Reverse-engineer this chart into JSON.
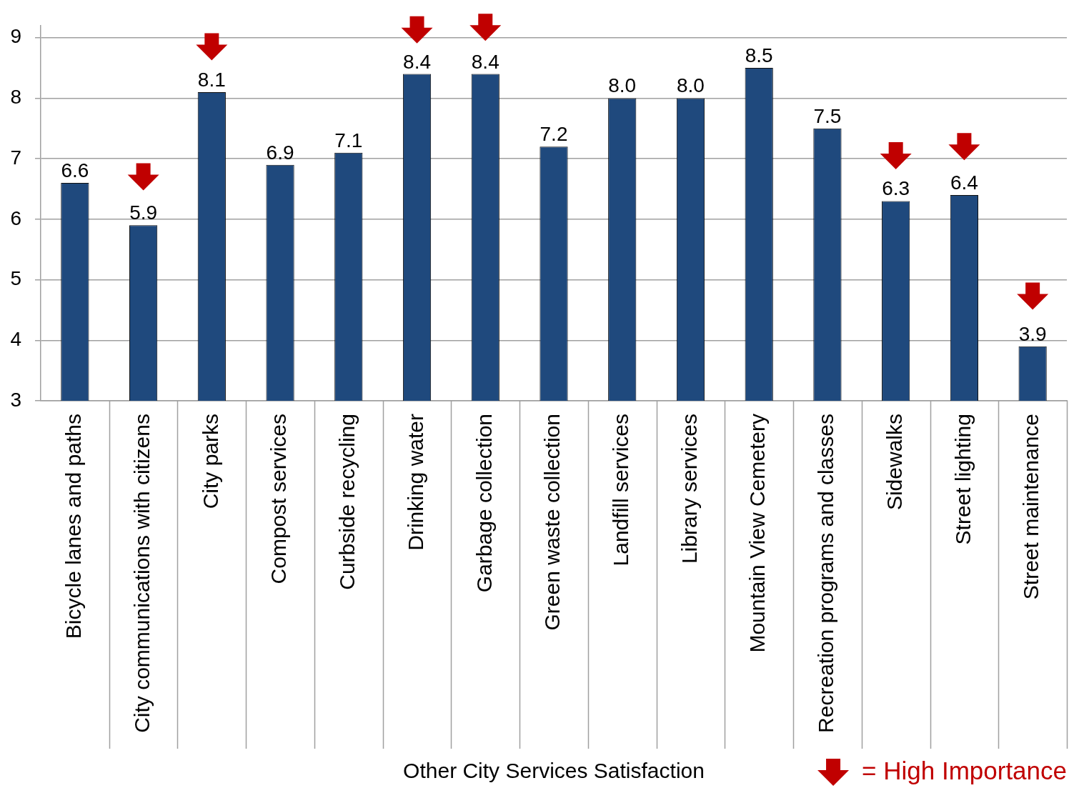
{
  "chart_data": {
    "type": "bar",
    "xlabel": "Other City Services Satisfaction",
    "categories": [
      "Bicycle lanes and paths",
      "City communications with citizens",
      "City parks",
      "Compost services",
      "Curbside recycling",
      "Drinking water",
      "Garbage collection",
      "Green waste collection",
      "Landfill services",
      "Library services",
      "Mountain View Cemetery",
      "Recreation programs and classes",
      "Sidewalks",
      "Street lighting",
      "Street maintenance"
    ],
    "series": [
      {
        "color": "#1f497d",
        "values": [
          6.6,
          5.9,
          8.1,
          6.9,
          7.1,
          8.4,
          8.4,
          7.2,
          8.0,
          8.0,
          8.5,
          7.5,
          6.3,
          6.4,
          3.9
        ],
        "value_labels": [
          "6.6",
          "5.9",
          "8.1",
          "6.9",
          "7.1",
          "8.4",
          "8.4",
          "7.2",
          "8.0",
          "8.0",
          "8.5",
          "7.5",
          "6.3",
          "6.4",
          "3.9"
        ]
      },
      {
        "type": "scatter",
        "name": "= High Importance",
        "color": "#c00000",
        "marker": "triangle",
        "x": [
          "City communications with citizens",
          "City parks",
          "Drinking water",
          "Garbage collection",
          "Sidewalks",
          "Street lighting",
          "Street maintenance"
        ],
        "values": [
          6.7,
          8.85,
          9.13,
          9.17,
          7.05,
          7.2,
          4.73
        ]
      }
    ],
    "ylim": [
      3,
      9.2
    ],
    "yticks": [
      3,
      4,
      5,
      6,
      7,
      8,
      9
    ],
    "grid": "y",
    "legend": "bottom right"
  }
}
